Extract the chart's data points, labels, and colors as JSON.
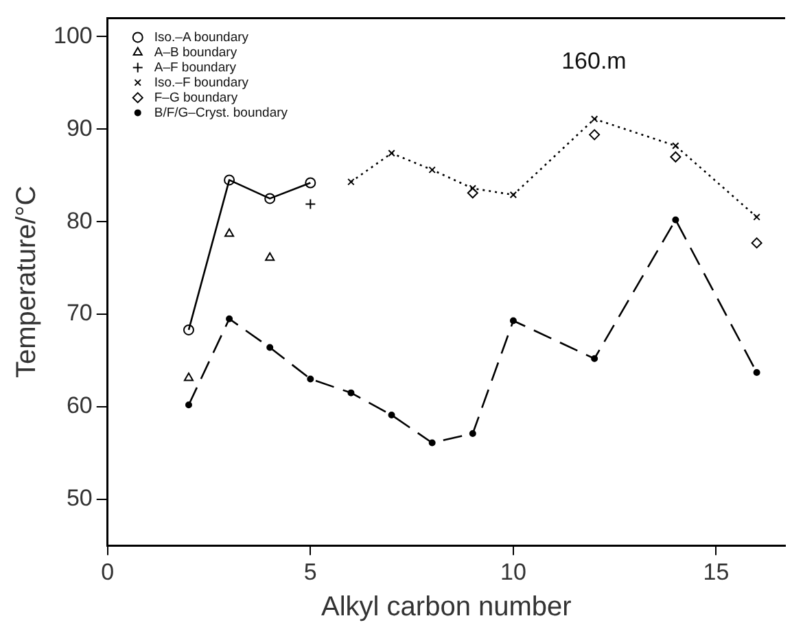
{
  "chart_data": {
    "type": "scatter",
    "xlabel": "Alkyl carbon number",
    "ylabel": "Temperature/°C",
    "annotations": [
      "160.m"
    ],
    "xlim": [
      0,
      16.7
    ],
    "xticks": [
      0,
      5,
      10,
      15
    ],
    "ylim": [
      45,
      102
    ],
    "yticks": [
      50,
      60,
      70,
      80,
      90,
      100
    ],
    "grid": false,
    "legend": "top left",
    "series": [
      {
        "name": "Iso.–A boundary",
        "type": "line",
        "line_style": "solid",
        "marker": "circle",
        "color": "#000000",
        "x": [
          2,
          3,
          4,
          5
        ],
        "values": [
          68.3,
          84.5,
          82.5,
          84.2
        ]
      },
      {
        "name": "A–B boundary",
        "marker": "triangle",
        "color": "#000000",
        "x": [
          2,
          3,
          4
        ],
        "values": [
          63.1,
          78.7,
          76.1
        ]
      },
      {
        "name": "A–F boundary",
        "marker": "cross",
        "color": "#000000",
        "x": [
          5
        ],
        "values": [
          81.9
        ]
      },
      {
        "name": "Iso.–F boundary",
        "type": "line",
        "line_style": "dotted",
        "marker": "x",
        "color": "#000000",
        "x": [
          6,
          7,
          8,
          9,
          10,
          12,
          14,
          16
        ],
        "values": [
          84.3,
          87.4,
          85.6,
          83.6,
          82.9,
          91.1,
          88.2,
          80.5
        ]
      },
      {
        "name": "F–G boundary",
        "marker": "diamond",
        "color": "#000000",
        "x": [
          9,
          12,
          14,
          16
        ],
        "values": [
          83.1,
          89.4,
          87.0,
          77.7
        ]
      },
      {
        "name": "B/F/G–Cryst. boundary",
        "type": "line",
        "line_style": "dashed",
        "marker": "dot",
        "color": "#000000",
        "x": [
          2,
          3,
          4,
          5,
          6,
          7,
          8,
          9,
          10,
          12,
          14,
          16
        ],
        "values": [
          60.2,
          69.5,
          66.4,
          63.0,
          61.5,
          59.1,
          56.1,
          57.1,
          69.3,
          65.2,
          80.2,
          63.7
        ]
      }
    ]
  }
}
